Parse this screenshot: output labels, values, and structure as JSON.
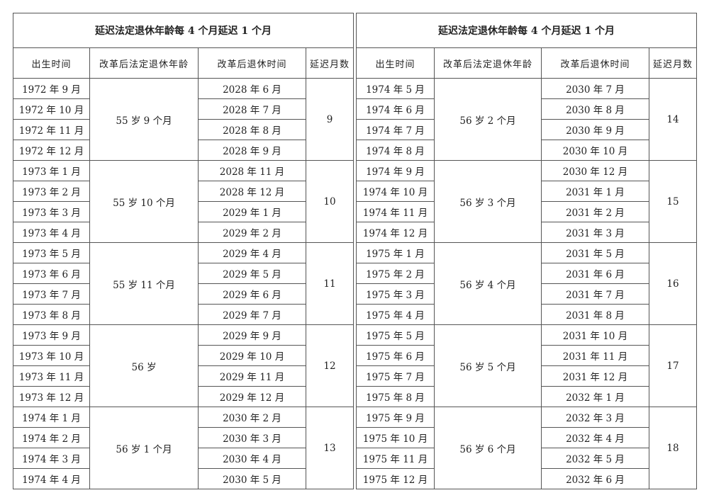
{
  "tables": [
    {
      "title": "延迟法定退休年龄每 4 个月延迟 1 个月",
      "headers": [
        "出生时间",
        "改革后法定退休年龄",
        "改革后退休时间",
        "延迟月数"
      ],
      "groups": [
        {
          "age": "55 岁 9 个月",
          "delay": 9,
          "rows": [
            {
              "birth": "1972 年 9 月",
              "retire": "2028 年 6 月"
            },
            {
              "birth": "1972 年 10 月",
              "retire": "2028 年 7 月"
            },
            {
              "birth": "1972 年 11 月",
              "retire": "2028 年 8 月"
            },
            {
              "birth": "1972 年 12 月",
              "retire": "2028 年 9 月"
            }
          ]
        },
        {
          "age": "55 岁 10 个月",
          "delay": 10,
          "rows": [
            {
              "birth": "1973 年 1 月",
              "retire": "2028 年 11 月"
            },
            {
              "birth": "1973 年 2 月",
              "retire": "2028 年 12 月"
            },
            {
              "birth": "1973 年 3 月",
              "retire": "2029 年 1 月"
            },
            {
              "birth": "1973 年 4 月",
              "retire": "2029 年 2 月"
            }
          ]
        },
        {
          "age": "55 岁 11 个月",
          "delay": 11,
          "rows": [
            {
              "birth": "1973 年 5 月",
              "retire": "2029 年 4 月"
            },
            {
              "birth": "1973 年 6 月",
              "retire": "2029 年 5 月"
            },
            {
              "birth": "1973 年 7 月",
              "retire": "2029 年 6 月"
            },
            {
              "birth": "1973 年 8 月",
              "retire": "2029 年 7 月"
            }
          ]
        },
        {
          "age": "56 岁",
          "delay": 12,
          "rows": [
            {
              "birth": "1973 年 9 月",
              "retire": "2029 年 9 月"
            },
            {
              "birth": "1973 年 10 月",
              "retire": "2029 年 10 月"
            },
            {
              "birth": "1973 年 11 月",
              "retire": "2029 年 11 月"
            },
            {
              "birth": "1973 年 12 月",
              "retire": "2029 年 12 月"
            }
          ]
        },
        {
          "age": "56 岁 1 个月",
          "delay": 13,
          "rows": [
            {
              "birth": "1974 年 1 月",
              "retire": "2030 年 2 月"
            },
            {
              "birth": "1974 年 2 月",
              "retire": "2030 年 3 月"
            },
            {
              "birth": "1974 年 3 月",
              "retire": "2030 年 4 月"
            },
            {
              "birth": "1974 年 4 月",
              "retire": "2030 年 5 月"
            }
          ]
        }
      ]
    },
    {
      "title": "延迟法定退休年龄每 4 个月延迟 1 个月",
      "headers": [
        "出生时间",
        "改革后法定退休年龄",
        "改革后退休时间",
        "延迟月数"
      ],
      "groups": [
        {
          "age": "56 岁 2 个月",
          "delay": 14,
          "rows": [
            {
              "birth": "1974 年 5 月",
              "retire": "2030 年 7 月"
            },
            {
              "birth": "1974 年 6 月",
              "retire": "2030 年 8 月"
            },
            {
              "birth": "1974 年 7 月",
              "retire": "2030 年 9 月"
            },
            {
              "birth": "1974 年 8 月",
              "retire": "2030 年 10 月"
            }
          ]
        },
        {
          "age": "56 岁 3 个月",
          "delay": 15,
          "rows": [
            {
              "birth": "1974 年 9 月",
              "retire": "2030 年 12 月"
            },
            {
              "birth": "1974 年 10 月",
              "retire": "2031 年 1 月"
            },
            {
              "birth": "1974 年 11 月",
              "retire": "2031 年 2 月"
            },
            {
              "birth": "1974 年 12 月",
              "retire": "2031 年 3 月"
            }
          ]
        },
        {
          "age": "56 岁 4 个月",
          "delay": 16,
          "rows": [
            {
              "birth": "1975 年 1 月",
              "retire": "2031 年 5 月"
            },
            {
              "birth": "1975 年 2 月",
              "retire": "2031 年 6 月"
            },
            {
              "birth": "1975 年 3 月",
              "retire": "2031 年 7 月"
            },
            {
              "birth": "1975 年 4 月",
              "retire": "2031 年 8 月"
            }
          ]
        },
        {
          "age": "56 岁 5 个月",
          "delay": 17,
          "rows": [
            {
              "birth": "1975 年 5 月",
              "retire": "2031 年 10 月"
            },
            {
              "birth": "1975 年 6 月",
              "retire": "2031 年 11 月"
            },
            {
              "birth": "1975 年 7 月",
              "retire": "2031 年 12 月"
            },
            {
              "birth": "1975 年 8 月",
              "retire": "2032 年 1 月"
            }
          ]
        },
        {
          "age": "56 岁 6 个月",
          "delay": 18,
          "rows": [
            {
              "birth": "1975 年 9 月",
              "retire": "2032 年 3 月"
            },
            {
              "birth": "1975 年 10 月",
              "retire": "2032 年 4 月"
            },
            {
              "birth": "1975 年 11 月",
              "retire": "2032 年 5 月"
            },
            {
              "birth": "1975 年 12 月",
              "retire": "2032 年 6 月"
            }
          ]
        }
      ]
    }
  ]
}
